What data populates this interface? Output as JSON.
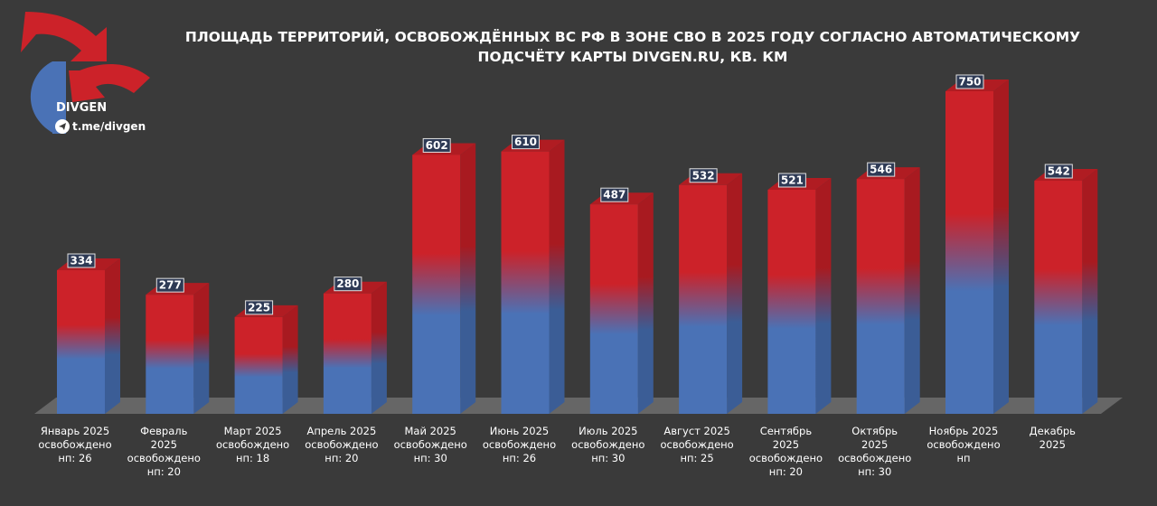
{
  "brand": {
    "name": "DIVGEN",
    "link": "t.me/divgen",
    "logo_icon": "divgen-arrows-logo-icon",
    "link_icon": "telegram-icon"
  },
  "colors": {
    "background": "#3a3a3a",
    "bar_top": "#cc2229",
    "bar_bottom": "#4a72b6",
    "floor": "#666666"
  },
  "chart_data": {
    "type": "bar",
    "title": "ПЛОЩАДЬ ТЕРРИТОРИЙ, ОСВОБОЖДЁННЫХ ВС РФ В ЗОНЕ СВО В 2025 ГОДУ СОГЛАСНО АВТОМАТИЧЕСКОМУ ПОДСЧЁТУ КАРТЫ DIVGEN.RU, КВ. КМ",
    "xlabel": "",
    "ylabel": "",
    "ylim": [
      0,
      800
    ],
    "grid": false,
    "legend": "none",
    "categories": [
      [
        "Январь 2025",
        "освобождено",
        "нп: 26"
      ],
      [
        "Февраль",
        "2025",
        "освобождено",
        "нп: 20"
      ],
      [
        "Март 2025",
        "освобождено",
        "нп: 18"
      ],
      [
        "Апрель 2025",
        "освобождено",
        "нп: 20"
      ],
      [
        "Май 2025",
        "освобождено",
        "нп: 30"
      ],
      [
        "Июнь 2025",
        "освобождено",
        "нп: 26"
      ],
      [
        "Июль 2025",
        "освобождено",
        "нп: 30"
      ],
      [
        "Август 2025",
        "освобождено",
        "нп: 25"
      ],
      [
        "Сентябрь",
        "2025",
        "освобождено",
        "нп: 20"
      ],
      [
        "Октябрь",
        "2025",
        "освобождено",
        "нп: 30"
      ],
      [
        "Ноябрь 2025",
        "освобождено",
        "нп"
      ],
      [
        "Декабрь",
        "2025"
      ]
    ],
    "values": [
      334,
      277,
      225,
      280,
      602,
      610,
      487,
      532,
      521,
      546,
      750,
      542
    ]
  }
}
